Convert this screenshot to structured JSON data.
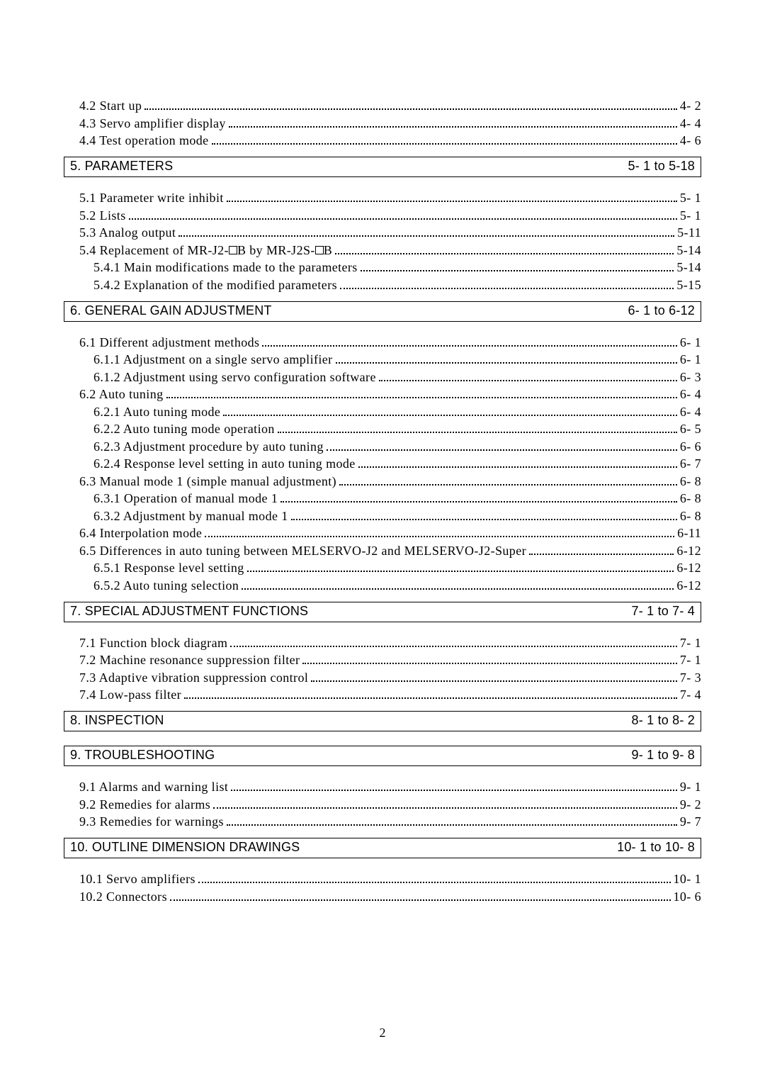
{
  "page_number": "2",
  "intro_lines": [
    {
      "label": "4.2 Start up",
      "page": "4- 2",
      "indent": 0
    },
    {
      "label": "4.3 Servo amplifier display",
      "page": "4- 4",
      "indent": 0
    },
    {
      "label": "4.4 Test operation mode",
      "page": "4- 6",
      "indent": 0
    }
  ],
  "sections": [
    {
      "title": "5. PARAMETERS",
      "range": "5- 1 to 5-18",
      "lines": [
        {
          "label": "5.1 Parameter write inhibit",
          "page": "5- 1",
          "indent": 0
        },
        {
          "label": "5.2 Lists",
          "page": "5- 1",
          "indent": 0
        },
        {
          "label": "5.3 Analog output",
          "page": "5-11",
          "indent": 0
        },
        {
          "label": "5.4 Replacement of MR-J2-□B by MR-J2S-□B",
          "page": "5-14",
          "indent": 0,
          "special": "replace"
        },
        {
          "label": "5.4.1 Main modifications made to the parameters",
          "page": "5-14",
          "indent": 1
        },
        {
          "label": "5.4.2 Explanation of the modified parameters",
          "page": "5-15",
          "indent": 1
        }
      ]
    },
    {
      "title": "6. GENERAL GAIN ADJUSTMENT",
      "range": "6- 1 to 6-12",
      "lines": [
        {
          "label": "6.1 Different adjustment methods",
          "page": "6- 1",
          "indent": 0
        },
        {
          "label": "6.1.1 Adjustment on a single servo amplifier",
          "page": "6- 1",
          "indent": 1
        },
        {
          "label": "6.1.2 Adjustment using servo configuration software",
          "page": "6- 3",
          "indent": 1
        },
        {
          "label": "6.2 Auto tuning",
          "page": "6- 4",
          "indent": 0
        },
        {
          "label": "6.2.1 Auto tuning mode",
          "page": "6- 4",
          "indent": 1
        },
        {
          "label": "6.2.2 Auto tuning mode operation",
          "page": "6- 5",
          "indent": 1
        },
        {
          "label": "6.2.3 Adjustment procedure by auto tuning",
          "page": "6- 6",
          "indent": 1
        },
        {
          "label": "6.2.4 Response level setting in auto tuning mode",
          "page": "6- 7",
          "indent": 1
        },
        {
          "label": "6.3 Manual mode 1 (simple manual adjustment)",
          "page": "6- 8",
          "indent": 0
        },
        {
          "label": "6.3.1 Operation of manual mode 1",
          "page": "6- 8",
          "indent": 1
        },
        {
          "label": "6.3.2 Adjustment by manual mode 1",
          "page": "6- 8",
          "indent": 1
        },
        {
          "label": "6.4 Interpolation mode",
          "page": "6-11",
          "indent": 0
        },
        {
          "label": "6.5 Differences in auto tuning between MELSERVO-J2 and MELSERVO-J2-Super",
          "page": "6-12",
          "indent": 0
        },
        {
          "label": "6.5.1 Response level setting",
          "page": "6-12",
          "indent": 1
        },
        {
          "label": "6.5.2 Auto tuning selection",
          "page": "6-12",
          "indent": 1
        }
      ]
    },
    {
      "title": "7. SPECIAL ADJUSTMENT FUNCTIONS",
      "range": "7- 1 to 7- 4",
      "lines": [
        {
          "label": "7.1 Function block diagram",
          "page": "7- 1",
          "indent": 0
        },
        {
          "label": "7.2 Machine resonance suppression filter",
          "page": "7- 1",
          "indent": 0
        },
        {
          "label": "7.3 Adaptive vibration suppression control",
          "page": "7- 3",
          "indent": 0
        },
        {
          "label": "7.4 Low-pass filter",
          "page": "7- 4",
          "indent": 0
        }
      ]
    },
    {
      "title": "8. INSPECTION",
      "range": "8- 1 to 8- 2",
      "lines": []
    },
    {
      "title": "9. TROUBLESHOOTING",
      "range": "9- 1 to 9- 8",
      "lines": [
        {
          "label": "9.1 Alarms and warning list",
          "page": "9- 1",
          "indent": 0
        },
        {
          "label": "9.2 Remedies for alarms",
          "page": "9- 2",
          "indent": 0
        },
        {
          "label": "9.3 Remedies for warnings",
          "page": "9- 7",
          "indent": 0
        }
      ]
    },
    {
      "title": "10. OUTLINE DIMENSION DRAWINGS",
      "range": "10- 1 to 10- 8",
      "lines": [
        {
          "label": "10.1 Servo amplifiers",
          "page": "10- 1",
          "indent": 0
        },
        {
          "label": "10.2 Connectors",
          "page": "10- 6",
          "indent": 0
        }
      ]
    }
  ]
}
